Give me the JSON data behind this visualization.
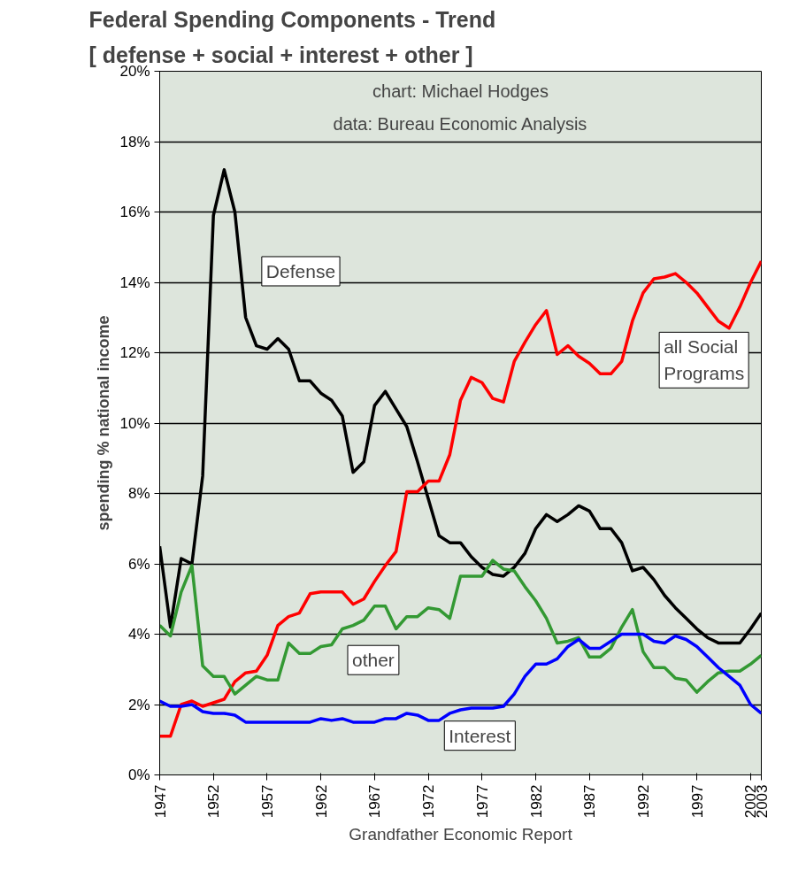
{
  "chart_data": {
    "type": "line",
    "title": "Federal Spending Components - Trend",
    "subtitle": "[ defense + social + interest + other ]",
    "ylabel": "spending % national income",
    "xlabel": "Grandfather Economic Report",
    "annotations": [
      "chart: Michael Hodges",
      "data: Bureau Economic Analysis"
    ],
    "x": [
      1947,
      1948,
      1949,
      1950,
      1951,
      1952,
      1953,
      1954,
      1955,
      1956,
      1957,
      1958,
      1959,
      1960,
      1961,
      1962,
      1963,
      1964,
      1965,
      1966,
      1967,
      1968,
      1969,
      1970,
      1971,
      1972,
      1973,
      1974,
      1975,
      1976,
      1977,
      1978,
      1979,
      1980,
      1981,
      1982,
      1983,
      1984,
      1985,
      1986,
      1987,
      1988,
      1989,
      1990,
      1991,
      1992,
      1993,
      1994,
      1995,
      1996,
      1997,
      1998,
      1999,
      2000,
      2001,
      2002,
      2003
    ],
    "series": [
      {
        "name": "Defense",
        "color": "#000000",
        "values": [
          6.5,
          4.2,
          6.15,
          6.0,
          8.5,
          15.9,
          17.2,
          16.0,
          13.0,
          12.2,
          12.1,
          12.4,
          12.1,
          11.2,
          11.2,
          10.85,
          10.65,
          10.2,
          8.6,
          8.9,
          10.5,
          10.9,
          10.4,
          9.9,
          8.9,
          7.85,
          6.8,
          6.6,
          6.6,
          6.2,
          5.9,
          5.7,
          5.65,
          5.9,
          6.3,
          7.0,
          7.4,
          7.2,
          7.4,
          7.65,
          7.5,
          7.0,
          7.0,
          6.6,
          5.8,
          5.9,
          5.55,
          5.1,
          4.75,
          4.45,
          4.15,
          3.9,
          3.75,
          3.75,
          3.75,
          4.15,
          4.6
        ]
      },
      {
        "name": "all Social Programs",
        "color": "#ff0000",
        "values": [
          1.1,
          1.1,
          2.0,
          2.1,
          1.95,
          2.05,
          2.15,
          2.65,
          2.9,
          2.95,
          3.4,
          4.25,
          4.5,
          4.6,
          5.15,
          5.2,
          5.2,
          5.2,
          4.85,
          5.0,
          5.5,
          5.95,
          6.35,
          8.05,
          8.05,
          8.35,
          8.35,
          9.1,
          10.65,
          11.3,
          11.15,
          10.7,
          10.6,
          11.75,
          12.3,
          12.8,
          13.2,
          11.95,
          12.2,
          11.9,
          11.7,
          11.4,
          11.4,
          11.75,
          12.9,
          13.7,
          14.1,
          14.15,
          14.25,
          14.0,
          13.7,
          13.3,
          12.9,
          12.7,
          13.3,
          14.0,
          14.6
        ]
      },
      {
        "name": "other",
        "color": "#339933",
        "values": [
          4.25,
          3.95,
          5.2,
          5.95,
          3.1,
          2.8,
          2.8,
          2.3,
          2.55,
          2.8,
          2.7,
          2.7,
          3.75,
          3.45,
          3.45,
          3.65,
          3.7,
          4.15,
          4.25,
          4.4,
          4.8,
          4.8,
          4.15,
          4.5,
          4.5,
          4.75,
          4.7,
          4.45,
          5.65,
          5.65,
          5.65,
          6.1,
          5.85,
          5.8,
          5.35,
          4.95,
          4.45,
          3.75,
          3.8,
          3.9,
          3.35,
          3.35,
          3.6,
          4.2,
          4.7,
          3.5,
          3.05,
          3.05,
          2.75,
          2.7,
          2.35,
          2.65,
          2.9,
          2.95,
          2.95,
          3.15,
          3.4
        ]
      },
      {
        "name": "Interest",
        "color": "#0000ff",
        "values": [
          2.1,
          1.95,
          1.95,
          2.0,
          1.8,
          1.75,
          1.75,
          1.7,
          1.5,
          1.5,
          1.5,
          1.5,
          1.5,
          1.5,
          1.5,
          1.6,
          1.55,
          1.6,
          1.5,
          1.5,
          1.5,
          1.6,
          1.6,
          1.75,
          1.7,
          1.55,
          1.55,
          1.75,
          1.85,
          1.9,
          1.9,
          1.9,
          1.95,
          2.3,
          2.8,
          3.15,
          3.15,
          3.3,
          3.65,
          3.85,
          3.6,
          3.6,
          3.8,
          4.0,
          4.0,
          4.0,
          3.8,
          3.75,
          3.95,
          3.85,
          3.65,
          3.35,
          3.05,
          2.8,
          2.55,
          2.0,
          1.75
        ]
      }
    ],
    "xlim": [
      1947,
      2003
    ],
    "xticks": [
      1947,
      1952,
      1957,
      1962,
      1967,
      1972,
      1977,
      1982,
      1987,
      1992,
      1997,
      2002,
      2003
    ],
    "ylim": [
      0,
      20
    ],
    "yticks": [
      {
        "value": 0,
        "label": "0%"
      },
      {
        "value": 2,
        "label": "2%"
      },
      {
        "value": 4,
        "label": "4%"
      },
      {
        "value": 6,
        "label": "6%"
      },
      {
        "value": 8,
        "label": "8%"
      },
      {
        "value": 10,
        "label": "10%"
      },
      {
        "value": 12,
        "label": "12%"
      },
      {
        "value": 14,
        "label": "14%"
      },
      {
        "value": 16,
        "label": "16%"
      },
      {
        "value": 18,
        "label": "18%"
      },
      {
        "value": 20,
        "label": "20%"
      }
    ],
    "grid": "y",
    "marker": "none",
    "line_style": "solid"
  }
}
